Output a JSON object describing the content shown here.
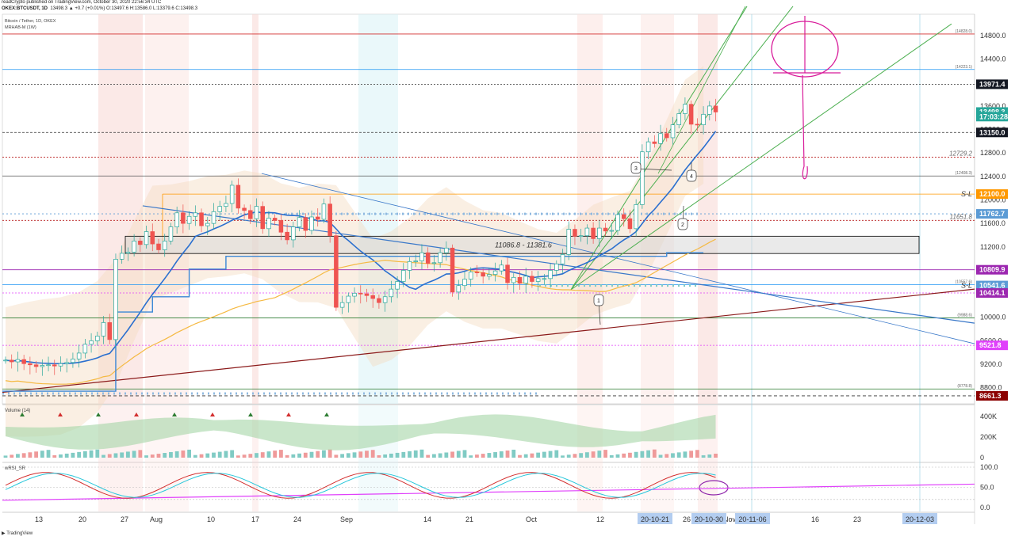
{
  "header": {
    "line1": "readCrypto published on TradingView.com, October 30, 2020 22:56:34 UTC",
    "line2_symbol": "OKEX:BTCUSDT, 1D",
    "line2_values": "13498.3 ▲ +0.7 (+0.01%) O:13497.6 H:13586.0 L:13379.6 C:13498.3"
  },
  "pane_titles": {
    "main": "Bitcoin / Tether, 1D, OKEX",
    "indicator": "MRHAB-M (1W)",
    "volume": "Volume (14)",
    "rsi": "wRSI_SR"
  },
  "footer": {
    "logo": "TradingView"
  },
  "chart_data": {
    "type": "candlestick",
    "symbol": "OKEX:BTCUSDT",
    "interval": "1D",
    "ylim": [
      8500,
      15300
    ],
    "y_ticks": [
      8800,
      9200,
      9600,
      10000,
      10400,
      10800,
      11200,
      11600,
      12000,
      12400,
      12800,
      13200,
      13600,
      14000,
      14400,
      14800
    ],
    "x_tick_labels": [
      "13",
      "20",
      "27",
      "Aug",
      "10",
      "17",
      "24",
      "Sep",
      "14",
      "21",
      "Oct",
      "12",
      "19",
      "26",
      "Nov",
      "16",
      "23",
      "Dec"
    ],
    "x_date_badges": [
      "20-10-21",
      "20-10-30",
      "20-11-06",
      "20-12-03"
    ],
    "price_tags": [
      {
        "value": 13971.4,
        "label": "13971.4",
        "color": "#131722"
      },
      {
        "value": 13498.3,
        "label": "13498.3",
        "color": "#26a69a"
      },
      {
        "value": 13420,
        "label": "17:03:28",
        "color": "#26a69a"
      },
      {
        "value": 13150.0,
        "label": "13150.0",
        "color": "#131722"
      },
      {
        "value": 12100.0,
        "label": "12100.0",
        "color": "#ff9800"
      },
      {
        "value": 11762.7,
        "label": "11762.7",
        "color": "#5b9bd5"
      },
      {
        "value": 10809.9,
        "label": "10809.9",
        "color": "#9c27b0"
      },
      {
        "value": 10541.6,
        "label": "10541.6",
        "color": "#5b9bd5"
      },
      {
        "value": 10414.1,
        "label": "10414.1",
        "color": "#9c27b0"
      },
      {
        "value": 9521.8,
        "label": "9521.8",
        "color": "#e040fb"
      },
      {
        "value": 8661.3,
        "label": "8661.3",
        "color": "#8b0000"
      }
    ],
    "horizontal_levels": [
      {
        "value": 14828.0,
        "label": "(14828.0)",
        "color": "#d32f2f"
      },
      {
        "value": 14223.1,
        "label": "(14223.1)",
        "color": "#2196f3"
      },
      {
        "value": 12729.2,
        "label": "12729.2",
        "color": "#b71c1c"
      },
      {
        "value": 12408.3,
        "label": "(12408.3)",
        "color": "#555555"
      },
      {
        "value": 11651.8,
        "label": "11651.8",
        "color": "#b71c1c"
      },
      {
        "value": 10557.6,
        "label": "(10557.6)",
        "color": "#2196f3"
      },
      {
        "value": 9988.6,
        "label": "(9988.6)",
        "color": "#2e7d32"
      },
      {
        "value": 8778.8,
        "label": "(8778.8)",
        "color": "#2e7d32"
      }
    ],
    "sl_labels": [
      "S-L",
      "S-L"
    ],
    "zone": {
      "low": 11086.8,
      "high": 11381.6,
      "label": "11086.8 - 11381.6"
    },
    "callouts": [
      "1",
      "2",
      "3",
      "4"
    ],
    "close_series": [
      9270,
      9240,
      9280,
      9210,
      9190,
      9160,
      9180,
      9190,
      9170,
      9210,
      9230,
      9290,
      9390,
      9540,
      9600,
      9680,
      9910,
      9620,
      10990,
      11090,
      11110,
      11300,
      11240,
      11460,
      11250,
      11150,
      11300,
      11540,
      11780,
      11600,
      11720,
      11780,
      11560,
      11600,
      11800,
      11890,
      11940,
      12250,
      11860,
      11820,
      11680,
      11890,
      11510,
      11690,
      11650,
      11450,
      11320,
      11540,
      11700,
      11480,
      11710,
      11670,
      11930,
      11390,
      10170,
      10250,
      10360,
      10410,
      10400,
      10370,
      10320,
      10250,
      10350,
      10480,
      10610,
      10800,
      10950,
      10960,
      11100,
      10920,
      10930,
      11100,
      11180,
      10430,
      10540,
      10650,
      10770,
      10760,
      10700,
      10730,
      10790,
      10890,
      10590,
      10680,
      10580,
      10700,
      10610,
      10660,
      10660,
      10800,
      10910,
      11070,
      11500,
      11380,
      11390,
      11520,
      11340,
      11520,
      11470,
      11480,
      11750,
      11680,
      11510,
      11920,
      12820,
      12990,
      12960,
      13130,
      13060,
      13280,
      13470,
      13630,
      13290,
      13280,
      13460,
      13600,
      13498
    ],
    "volume_axis": [
      "400K",
      "200K",
      "0"
    ],
    "rsi_axis": [
      "100.0",
      "50.0",
      "0.0"
    ]
  }
}
